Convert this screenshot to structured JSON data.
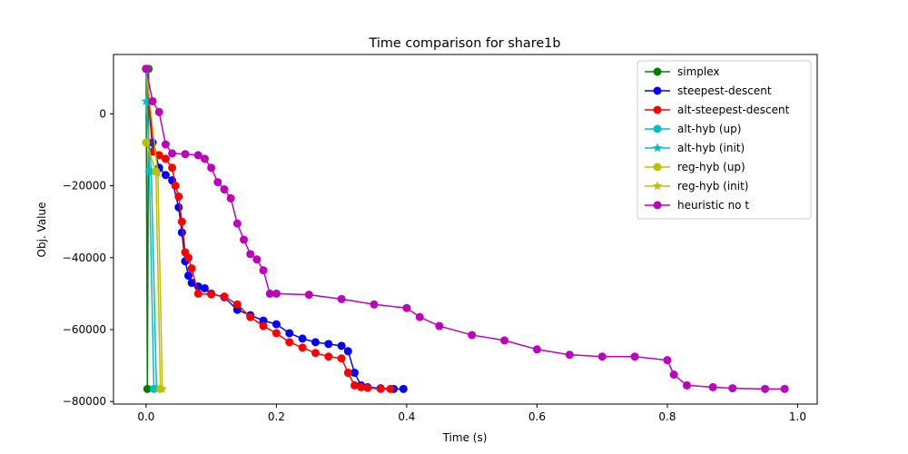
{
  "chart_data": {
    "type": "line",
    "title": "Time comparison for share1b",
    "xlabel": "Time (s)",
    "ylabel": "Obj. Value",
    "xlim": [
      -0.05,
      1.03
    ],
    "ylim": [
      -80700,
      16500
    ],
    "xticks": [
      0.0,
      0.2,
      0.4,
      0.6,
      0.8,
      1.0
    ],
    "xtick_labels": [
      "0.0",
      "0.2",
      "0.4",
      "0.6",
      "0.8",
      "1.0"
    ],
    "yticks": [
      -80000,
      -60000,
      -40000,
      -20000,
      0
    ],
    "ytick_labels": [
      "−80000",
      "−60000",
      "−40000",
      "−20000",
      "0"
    ],
    "grid": false,
    "legend_position": "top-right",
    "series": [
      {
        "name": "simplex",
        "color": "#008000",
        "marker": "circle",
        "x": [
          0.0,
          0.002,
          0.004
        ],
        "y": [
          12500,
          -76500,
          12500
        ]
      },
      {
        "name": "steepest-descent",
        "color": "#0000ff",
        "marker": "circle",
        "x": [
          0.0,
          0.01,
          0.02,
          0.03,
          0.04,
          0.05,
          0.055,
          0.06,
          0.065,
          0.07,
          0.08,
          0.09,
          0.1,
          0.12,
          0.14,
          0.16,
          0.18,
          0.2,
          0.22,
          0.24,
          0.26,
          0.28,
          0.3,
          0.31,
          0.32,
          0.33,
          0.34,
          0.36,
          0.38,
          0.395
        ],
        "y": [
          12500,
          -8000,
          -15000,
          -17000,
          -18500,
          -26000,
          -33000,
          -41000,
          -45000,
          -47000,
          -48000,
          -48500,
          -50000,
          -51000,
          -54500,
          -56000,
          -57500,
          -58500,
          -61000,
          -62500,
          -63500,
          -64000,
          -64500,
          -66000,
          -72000,
          -75500,
          -76000,
          -76300,
          -76500,
          -76500
        ]
      },
      {
        "name": "alt-steepest-descent",
        "color": "#ff0000",
        "marker": "circle",
        "x": [
          0.0,
          0.01,
          0.02,
          0.03,
          0.04,
          0.045,
          0.05,
          0.055,
          0.06,
          0.065,
          0.07,
          0.08,
          0.1,
          0.12,
          0.14,
          0.16,
          0.18,
          0.2,
          0.22,
          0.24,
          0.26,
          0.28,
          0.3,
          0.31,
          0.32,
          0.33,
          0.34,
          0.36,
          0.375
        ],
        "y": [
          12500,
          -10500,
          -11500,
          -12500,
          -15000,
          -20000,
          -23000,
          -30000,
          -38500,
          -40000,
          -43000,
          -50000,
          -50200,
          -50800,
          -53000,
          -56500,
          -59000,
          -61000,
          -63500,
          -65000,
          -66500,
          -67500,
          -68000,
          -72000,
          -75500,
          -76000,
          -76200,
          -76500,
          -76500
        ]
      },
      {
        "name": "alt-hyb (up)",
        "color": "#00bfbf",
        "marker": "circle",
        "x": [
          0.0,
          0.005,
          0.012
        ],
        "y": [
          12500,
          -16000,
          -76500
        ]
      },
      {
        "name": "alt-hyb (init)",
        "color": "#00bfbf",
        "marker": "star",
        "x": [
          0.0,
          0.008,
          0.016
        ],
        "y": [
          3500,
          -16000,
          -76500
        ]
      },
      {
        "name": "reg-hyb (up)",
        "color": "#bfbf00",
        "marker": "circle",
        "x": [
          0.0,
          0.015,
          0.022
        ],
        "y": [
          -8000,
          -16000,
          -76500
        ]
      },
      {
        "name": "reg-hyb (init)",
        "color": "#bfbf00",
        "marker": "star",
        "x": [
          0.0,
          0.018,
          0.025
        ],
        "y": [
          12500,
          -16500,
          -76500
        ]
      },
      {
        "name": "heuristic no t",
        "color": "#bf00bf",
        "marker": "circle",
        "x": [
          0.0,
          0.01,
          0.02,
          0.03,
          0.04,
          0.06,
          0.08,
          0.09,
          0.1,
          0.11,
          0.12,
          0.13,
          0.14,
          0.15,
          0.16,
          0.17,
          0.18,
          0.19,
          0.2,
          0.25,
          0.3,
          0.35,
          0.4,
          0.42,
          0.45,
          0.5,
          0.55,
          0.6,
          0.65,
          0.7,
          0.75,
          0.8,
          0.81,
          0.83,
          0.87,
          0.9,
          0.95,
          0.98
        ],
        "y": [
          12500,
          3500,
          500,
          -8500,
          -11000,
          -11200,
          -11500,
          -12500,
          -15000,
          -19000,
          -21000,
          -23500,
          -30500,
          -35000,
          -39000,
          -40500,
          -43500,
          -50000,
          -50000,
          -50300,
          -51500,
          -53000,
          -54000,
          -56500,
          -59000,
          -61500,
          -63000,
          -65500,
          -67000,
          -67500,
          -67500,
          -68500,
          -72500,
          -75500,
          -76000,
          -76300,
          -76500,
          -76500
        ]
      }
    ]
  }
}
